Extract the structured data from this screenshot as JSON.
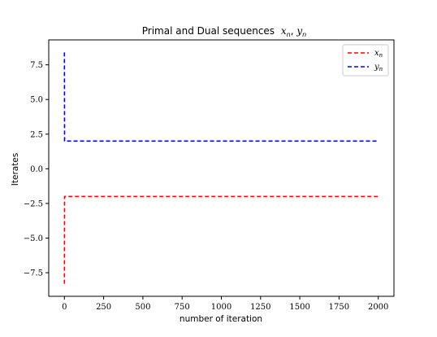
{
  "chart_data": {
    "type": "line",
    "title": "Primal and Dual sequences x_n, y_n",
    "title_main": "Primal and Dual sequences",
    "title_math": "x",
    "title_sub_1": "n",
    "title_comma": ", ",
    "title_math_2": "y",
    "title_sub_2": "n",
    "xlabel": "number of iteration",
    "ylabel": "Iterates",
    "xlim": [
      -100,
      2100
    ],
    "ylim": [
      -9.2,
      9.3
    ],
    "xticks": [
      0,
      250,
      500,
      750,
      1000,
      1250,
      1500,
      1750,
      2000
    ],
    "xtick_labels": [
      "0",
      "250",
      "500",
      "750",
      "1000",
      "1250",
      "1500",
      "1750",
      "2000"
    ],
    "yticks": [
      -7.5,
      -5.0,
      -2.5,
      0.0,
      2.5,
      5.0,
      7.5
    ],
    "ytick_labels": [
      "−7.5",
      "−5.0",
      "−2.5",
      "0.0",
      "2.5",
      "5.0",
      "7.5"
    ],
    "grid": false,
    "legend_position": "top-right",
    "series": [
      {
        "name": "x_n",
        "legend_symbol": "x",
        "legend_sub": "n",
        "color": "#ff0000",
        "dash": "dashed",
        "x": [
          0,
          1,
          2,
          5,
          10,
          50,
          100,
          500,
          1000,
          1500,
          2000
        ],
        "y": [
          -8.3,
          -2.0,
          -2.0,
          -2.0,
          -2.0,
          -2.0,
          -2.0,
          -2.0,
          -2.0,
          -2.0,
          -2.0
        ]
      },
      {
        "name": "y_n",
        "legend_symbol": "y",
        "legend_sub": "n",
        "color": "#0000ff",
        "dash": "dashed",
        "x": [
          0,
          1,
          2,
          5,
          10,
          50,
          100,
          500,
          1000,
          1500,
          2000
        ],
        "y": [
          8.4,
          2.0,
          2.0,
          2.0,
          2.0,
          2.0,
          2.0,
          2.0,
          2.0,
          2.0,
          2.0
        ]
      }
    ]
  }
}
